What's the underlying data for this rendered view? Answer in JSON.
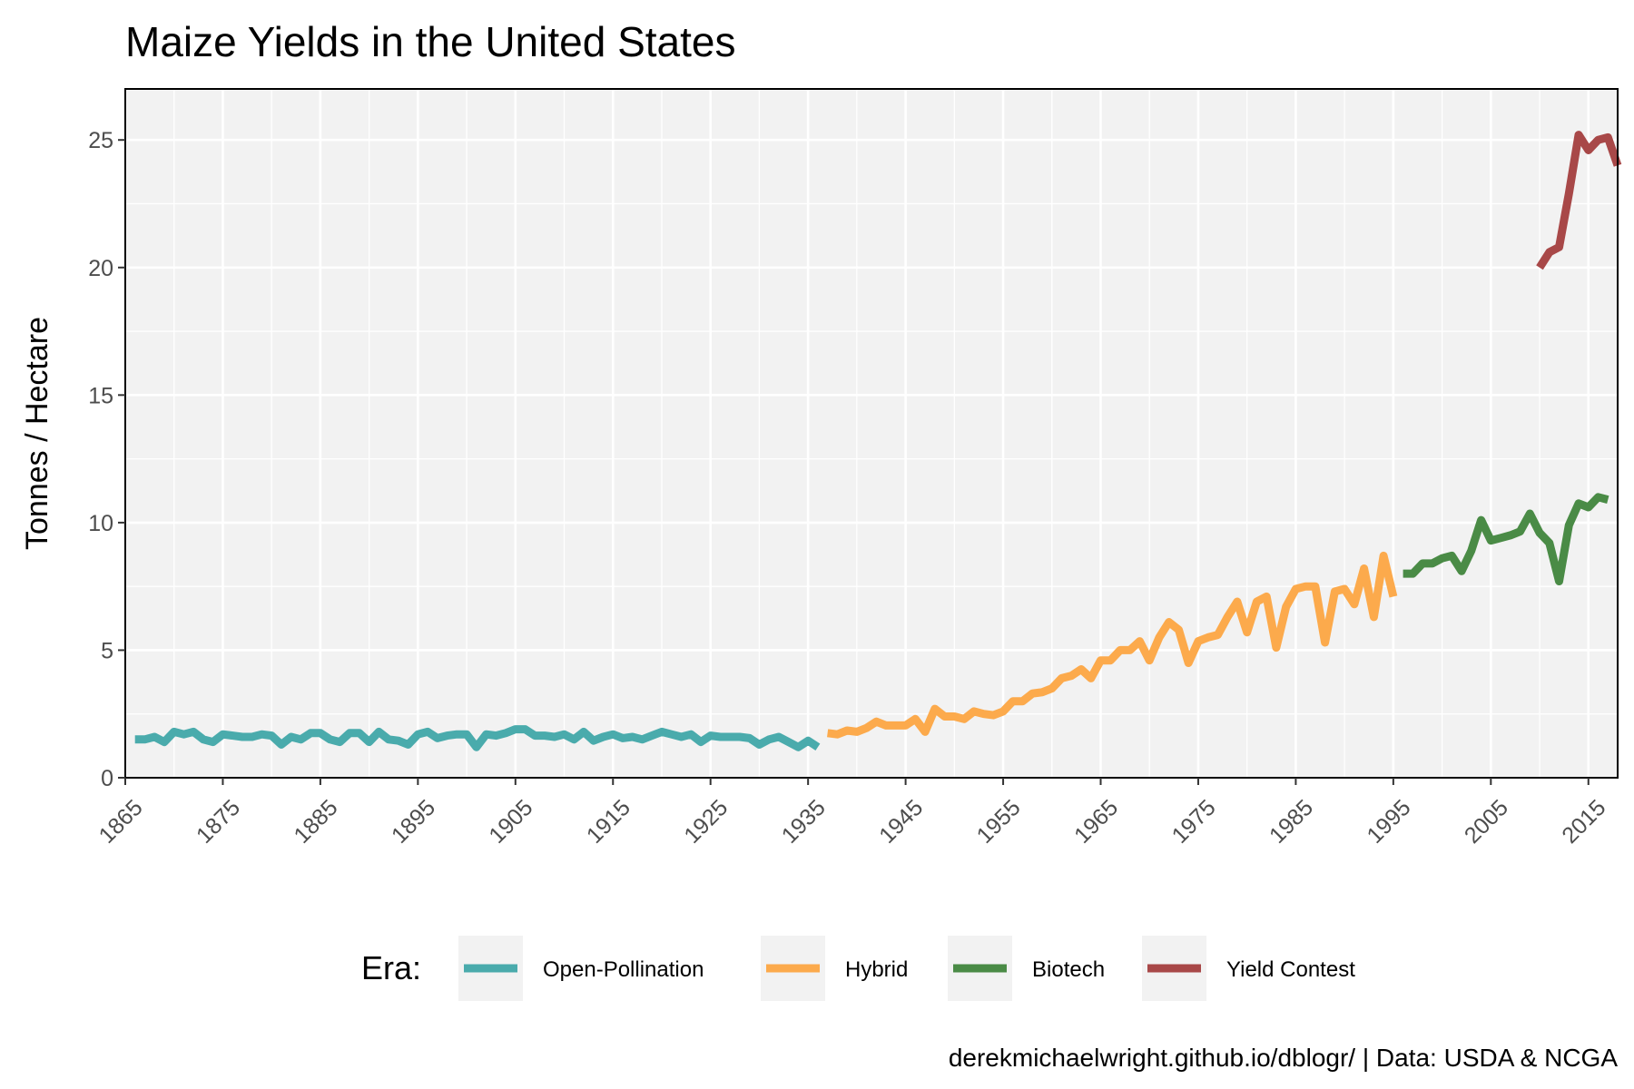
{
  "chart_data": {
    "type": "line",
    "title": "Maize Yields in the United States",
    "ylabel": "Tonnes / Hectare",
    "xlabel": "",
    "xlim": [
      1865,
      2018
    ],
    "ylim": [
      0,
      27
    ],
    "x_ticks": [
      "1865",
      "1875",
      "1885",
      "1895",
      "1905",
      "1915",
      "1925",
      "1935",
      "1945",
      "1955",
      "1965",
      "1975",
      "1985",
      "1995",
      "2005",
      "2015"
    ],
    "y_ticks": [
      "0",
      "5",
      "10",
      "15",
      "20",
      "25"
    ],
    "grid": true,
    "legend_title": "Era:",
    "legend_position": "bottom",
    "caption": "derekmichaelwright.github.io/dblogr/ | Data: USDA & NCGA",
    "series": [
      {
        "name": "Open-Pollination",
        "color": "#4aabac",
        "x": [
          1866,
          1867,
          1868,
          1869,
          1870,
          1871,
          1872,
          1873,
          1874,
          1875,
          1876,
          1877,
          1878,
          1879,
          1880,
          1881,
          1882,
          1883,
          1884,
          1885,
          1886,
          1887,
          1888,
          1889,
          1890,
          1891,
          1892,
          1893,
          1894,
          1895,
          1896,
          1897,
          1898,
          1899,
          1900,
          1901,
          1902,
          1903,
          1904,
          1905,
          1906,
          1907,
          1908,
          1909,
          1910,
          1911,
          1912,
          1913,
          1914,
          1915,
          1916,
          1917,
          1918,
          1919,
          1920,
          1921,
          1922,
          1923,
          1924,
          1925,
          1926,
          1927,
          1928,
          1929,
          1930,
          1931,
          1932,
          1933,
          1934,
          1935,
          1936
        ],
        "y": [
          1.5,
          1.5,
          1.6,
          1.4,
          1.8,
          1.7,
          1.8,
          1.5,
          1.4,
          1.7,
          1.65,
          1.6,
          1.6,
          1.7,
          1.65,
          1.3,
          1.6,
          1.5,
          1.75,
          1.75,
          1.5,
          1.4,
          1.75,
          1.75,
          1.4,
          1.8,
          1.5,
          1.45,
          1.3,
          1.7,
          1.8,
          1.55,
          1.65,
          1.7,
          1.7,
          1.2,
          1.7,
          1.65,
          1.75,
          1.9,
          1.9,
          1.65,
          1.65,
          1.6,
          1.7,
          1.5,
          1.8,
          1.45,
          1.6,
          1.7,
          1.55,
          1.6,
          1.5,
          1.65,
          1.8,
          1.7,
          1.6,
          1.7,
          1.4,
          1.65,
          1.6,
          1.6,
          1.6,
          1.55,
          1.3,
          1.5,
          1.6,
          1.4,
          1.2,
          1.45,
          1.2
        ]
      },
      {
        "name": "Hybrid",
        "color": "#fcaa4c",
        "x": [
          1937,
          1938,
          1939,
          1940,
          1941,
          1942,
          1943,
          1944,
          1945,
          1946,
          1947,
          1948,
          1949,
          1950,
          1951,
          1952,
          1953,
          1954,
          1955,
          1956,
          1957,
          1958,
          1959,
          1960,
          1961,
          1962,
          1963,
          1964,
          1965,
          1966,
          1967,
          1968,
          1969,
          1970,
          1971,
          1972,
          1973,
          1974,
          1975,
          1976,
          1977,
          1978,
          1979,
          1980,
          1981,
          1982,
          1983,
          1984,
          1985,
          1986,
          1987,
          1988,
          1989,
          1990,
          1991,
          1992,
          1993,
          1994,
          1995
        ],
        "y": [
          1.75,
          1.7,
          1.85,
          1.8,
          1.95,
          2.2,
          2.05,
          2.05,
          2.05,
          2.3,
          1.8,
          2.7,
          2.4,
          2.4,
          2.3,
          2.6,
          2.5,
          2.45,
          2.6,
          3.0,
          3.0,
          3.3,
          3.35,
          3.5,
          3.9,
          4.0,
          4.25,
          3.9,
          4.6,
          4.6,
          5.0,
          5.0,
          5.35,
          4.6,
          5.5,
          6.1,
          5.8,
          4.5,
          5.35,
          5.5,
          5.6,
          6.3,
          6.9,
          5.7,
          6.9,
          7.1,
          5.1,
          6.7,
          7.4,
          7.5,
          7.5,
          5.3,
          7.3,
          7.4,
          6.8,
          8.2,
          6.3,
          8.7,
          7.1
        ]
      },
      {
        "name": "Biotech",
        "color": "#4a8b46",
        "x": [
          1996,
          1997,
          1998,
          1999,
          2000,
          2001,
          2002,
          2003,
          2004,
          2005,
          2006,
          2007,
          2008,
          2009,
          2010,
          2011,
          2012,
          2013,
          2014,
          2015,
          2016,
          2017
        ],
        "y": [
          8.0,
          8.0,
          8.4,
          8.4,
          8.6,
          8.7,
          8.1,
          8.9,
          10.1,
          9.3,
          9.4,
          9.5,
          9.65,
          10.35,
          9.6,
          9.2,
          7.7,
          9.9,
          10.75,
          10.6,
          11.0,
          10.9
        ]
      },
      {
        "name": "Yield Contest",
        "color": "#a84848",
        "x": [
          2010,
          2011,
          2012,
          2013,
          2014,
          2015,
          2016,
          2017,
          2018
        ],
        "y": [
          20.0,
          20.6,
          20.8,
          22.9,
          25.2,
          24.6,
          25.0,
          25.1,
          24.0
        ]
      }
    ]
  }
}
